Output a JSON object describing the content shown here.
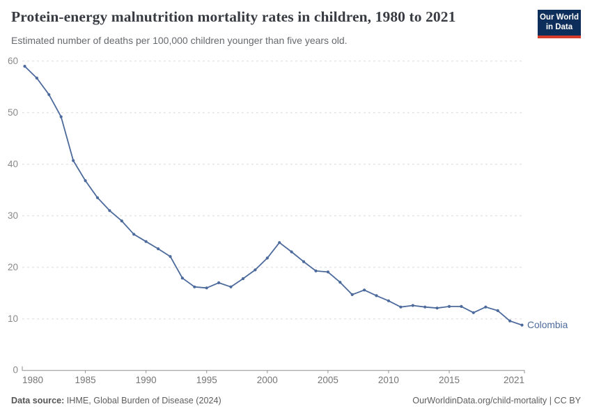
{
  "header": {
    "title": "Protein-energy malnutrition mortality rates in children, 1980 to 2021",
    "subtitle": "Estimated number of deaths per 100,000 children younger than five years old.",
    "logo": {
      "line1": "Our World",
      "line2": "in Data",
      "bg_color": "#0d2e5a",
      "accent_color": "#d63c2a"
    }
  },
  "chart_data": {
    "type": "line",
    "title": "Protein-energy malnutrition mortality rates in children, 1980 to 2021",
    "ylabel": "",
    "xlabel": "",
    "ylim": [
      0,
      60
    ],
    "xlim": [
      1980,
      2021
    ],
    "grid": "horizontal-dashed",
    "y_ticks": [
      0,
      10,
      20,
      30,
      40,
      50,
      60
    ],
    "x_ticks": [
      1980,
      1985,
      1990,
      1995,
      2000,
      2005,
      2010,
      2015,
      2021
    ],
    "end_label": "Colombia",
    "series": [
      {
        "name": "Colombia",
        "color": "#4C6A9C",
        "x": [
          1980,
          1981,
          1982,
          1983,
          1984,
          1985,
          1986,
          1987,
          1988,
          1989,
          1990,
          1991,
          1992,
          1993,
          1994,
          1995,
          1996,
          1997,
          1998,
          1999,
          2000,
          2001,
          2002,
          2003,
          2004,
          2005,
          2006,
          2007,
          2008,
          2009,
          2010,
          2011,
          2012,
          2013,
          2014,
          2015,
          2016,
          2017,
          2018,
          2019,
          2020,
          2021
        ],
        "values": [
          59.0,
          56.7,
          53.5,
          49.2,
          40.7,
          36.8,
          33.5,
          31.0,
          29.0,
          26.4,
          25.0,
          23.6,
          22.1,
          17.9,
          16.2,
          16.0,
          17.0,
          16.2,
          17.8,
          19.5,
          21.8,
          24.8,
          23.0,
          21.1,
          19.3,
          19.1,
          17.1,
          14.7,
          15.6,
          14.5,
          13.5,
          12.3,
          12.6,
          12.3,
          12.1,
          12.4,
          12.4,
          11.2,
          12.3,
          11.6,
          9.6,
          8.8
        ]
      }
    ]
  },
  "footer": {
    "source_label": "Data source:",
    "source_text": " IHME, Global Burden of Disease (2024)",
    "credit": "OurWorldinData.org/child-mortality | CC BY"
  }
}
